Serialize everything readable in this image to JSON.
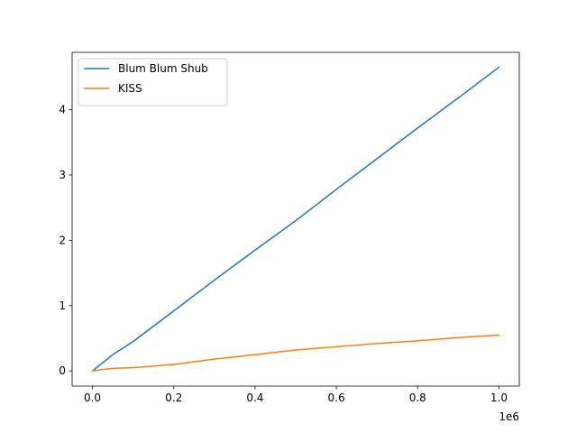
{
  "chart_data": {
    "type": "line",
    "title": "",
    "xlabel": "",
    "ylabel": "",
    "x_offset_label": "1e6",
    "xlim": [
      -50000,
      1050000
    ],
    "ylim": [
      -0.232,
      4.878
    ],
    "x_ticks": [
      0,
      200000,
      400000,
      600000,
      800000,
      1000000
    ],
    "x_tick_labels": [
      "0.0",
      "0.2",
      "0.4",
      "0.6",
      "0.8",
      "1.0"
    ],
    "y_ticks": [
      0,
      1,
      2,
      3,
      4
    ],
    "y_tick_labels": [
      "0",
      "1",
      "2",
      "3",
      "4"
    ],
    "grid": false,
    "legend_position": "top-left",
    "series": [
      {
        "name": "Blum Blum Shub",
        "color": "#1f77b4",
        "x": [
          0,
          10000,
          50000,
          100000,
          200000,
          300000,
          400000,
          500000,
          600000,
          700000,
          800000,
          900000,
          1000000
        ],
        "y": [
          0,
          0.05,
          0.25,
          0.45,
          0.92,
          1.39,
          1.85,
          2.3,
          2.78,
          3.25,
          3.72,
          4.18,
          4.65
        ]
      },
      {
        "name": "KISS",
        "color": "#ff7f0e",
        "x": [
          0,
          10000,
          50000,
          100000,
          200000,
          300000,
          400000,
          500000,
          600000,
          700000,
          800000,
          900000,
          1000000
        ],
        "y": [
          0,
          0.01,
          0.04,
          0.05,
          0.1,
          0.18,
          0.25,
          0.32,
          0.37,
          0.42,
          0.46,
          0.51,
          0.55
        ]
      }
    ]
  }
}
